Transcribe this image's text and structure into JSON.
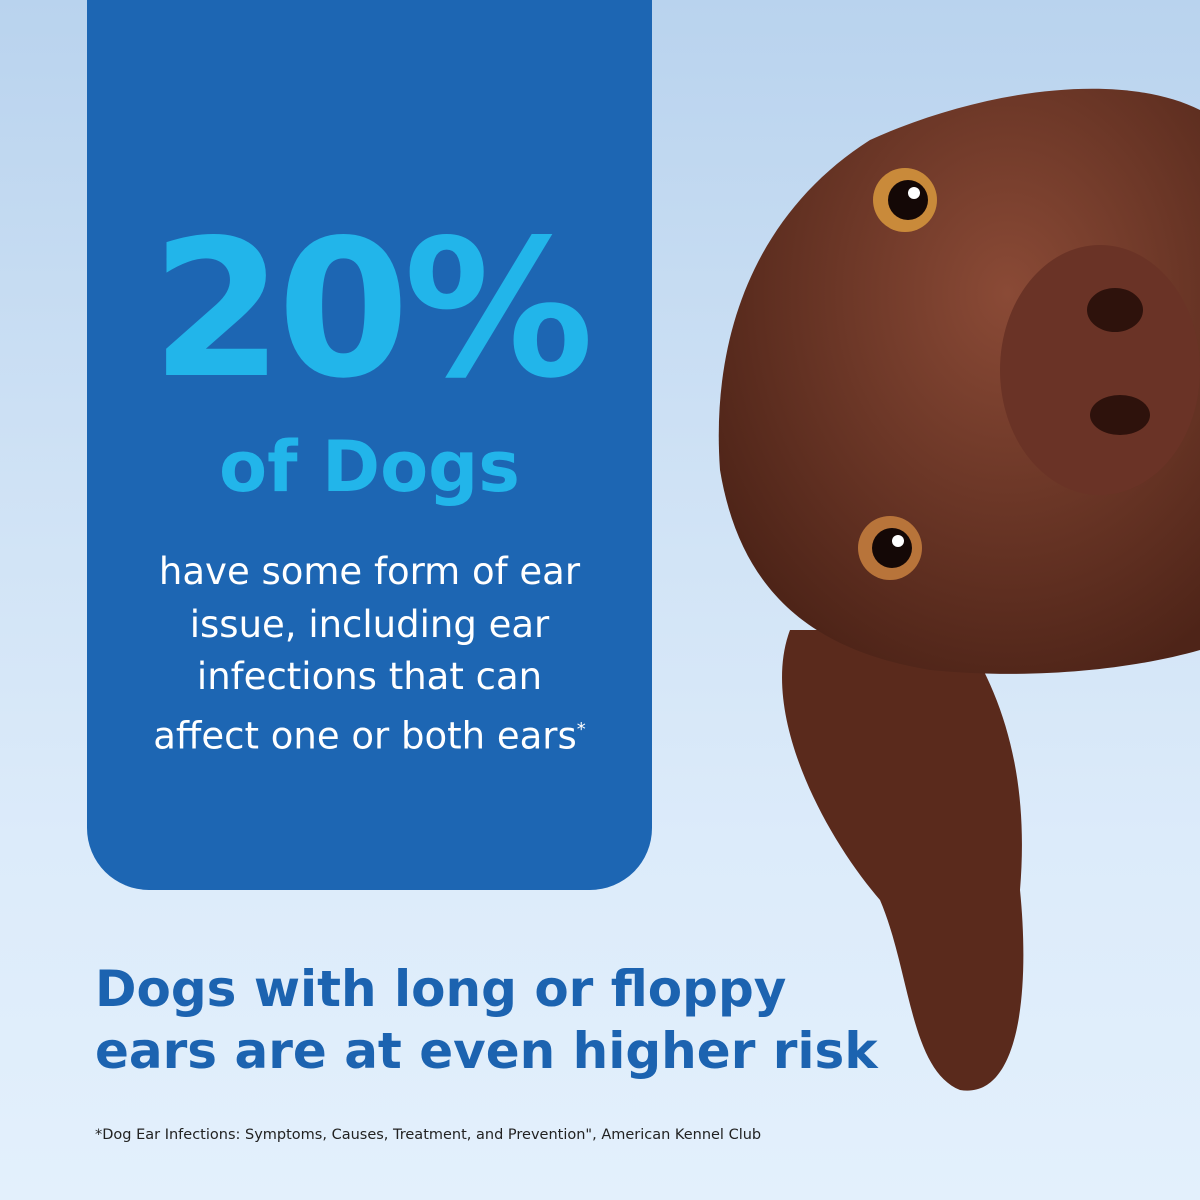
{
  "stat": {
    "value": "20%",
    "subject": "of Dogs"
  },
  "description": "have some form of ear issue, including ear infections that can affect one or both ears",
  "description_marker": "*",
  "headline": "Dogs with long or floppy ears are at even higher risk",
  "footnote": "*Dog Ear Infections: Symptoms, Causes, Treatment, and Prevention\",  American Kennel Club",
  "colors": {
    "card": "#1d66b3",
    "stat": "#22b5ea",
    "headline": "#1c63b0"
  }
}
